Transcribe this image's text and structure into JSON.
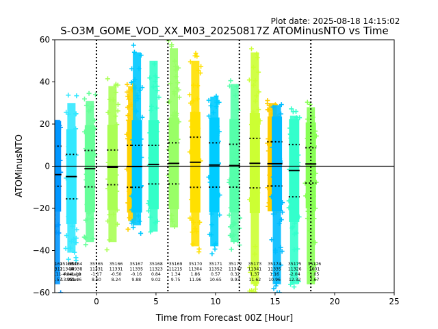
{
  "plot_date": "Plot date: 2025-08-18 14:15:02",
  "chart_data": {
    "type": "scatter",
    "title": "S-O3M_GOME_VOD_XX_M03_20250817Z ATOMinusNTO vs Time",
    "xlabel": "Time from Forecast 00Z [Hour]",
    "ylabel": "ATOMinusNTO",
    "xlim": [
      -3.5,
      25
    ],
    "ylim": [
      -60,
      60
    ],
    "xticks": [
      0,
      5,
      10,
      15,
      20,
      25
    ],
    "yticks": [
      -60,
      -40,
      -20,
      0,
      20,
      40,
      60
    ],
    "grid": false,
    "reference_line_y": 0,
    "vertical_dotted_lines_x": [
      0,
      6,
      12,
      18
    ],
    "orbits": [
      {
        "x": -3.4,
        "color": "#0096ff",
        "median": -4.0,
        "p25": -9.5,
        "p75": 9.5,
        "min": -60,
        "max": 26
      },
      {
        "x": -2.1,
        "color": "#33e8ff",
        "median": -4.9,
        "p25": -15.5,
        "p75": 5.6,
        "min": -45,
        "max": 34
      },
      {
        "x": -0.55,
        "color": "#66ff99",
        "median": -1.17,
        "p25": -9.8,
        "p75": 7.5,
        "min": -40,
        "max": 35
      },
      {
        "x": 1.35,
        "color": "#aaff55",
        "median": -0.5,
        "p25": -8.8,
        "p75": 7.7,
        "min": -40,
        "max": 42
      },
      {
        "x": 3.0,
        "color": "#ffd000",
        "median": -0.16,
        "p25": -10.0,
        "p75": 9.9,
        "min": -30,
        "max": 42
      },
      {
        "x": 3.4,
        "color": "#00c8ff",
        "median": -0.16,
        "p25": -10.0,
        "p75": 9.9,
        "min": -32,
        "max": 58
      },
      {
        "x": 4.8,
        "color": "#33ffc8",
        "median": 0.84,
        "p25": -8.4,
        "p75": 9.9,
        "min": -35,
        "max": 54
      },
      {
        "x": 6.5,
        "color": "#99ff66",
        "median": 1.34,
        "p25": -8.4,
        "p75": 11.1,
        "min": -33,
        "max": 60
      },
      {
        "x": 8.3,
        "color": "#ffe000",
        "median": 1.86,
        "p25": -10.0,
        "p75": 13.8,
        "min": -42,
        "max": 54
      },
      {
        "x": 9.9,
        "color": "#00ccff",
        "median": 0.57,
        "p25": -9.9,
        "p75": 11.1,
        "min": -42,
        "max": 37
      },
      {
        "x": 11.6,
        "color": "#55ffaa",
        "median": 0.32,
        "p25": -9.9,
        "p75": 10.4,
        "min": -40,
        "max": 43
      },
      {
        "x": 13.3,
        "color": "#ccff33",
        "median": 1.37,
        "p25": -10.3,
        "p75": 13.2,
        "min": -60,
        "max": 58
      },
      {
        "x": 14.8,
        "color": "#ffcc00",
        "median": 1.16,
        "p25": -9.4,
        "p75": 11.6,
        "min": -24,
        "max": 34
      },
      {
        "x": 15.15,
        "color": "#00bbff",
        "median": 1.16,
        "p25": -9.4,
        "p75": 11.6,
        "min": -60,
        "max": 33
      },
      {
        "x": 16.6,
        "color": "#33ffcc",
        "median": -2.04,
        "p25": -14.5,
        "p75": 10.3,
        "min": -60,
        "max": 28
      },
      {
        "x": 18.0,
        "color": "#88ff55",
        "median": 1.05,
        "p25": -8.0,
        "p75": 8.8,
        "min": -60,
        "max": 32
      }
    ],
    "annotations": [
      {
        "x": -3.4,
        "lines": [
          "35162",
          "11312",
          "-2.11",
          "15.57"
        ]
      },
      {
        "x": -2.5,
        "lines": [
          "35163",
          "11344",
          "-4.04",
          "13.97"
        ]
      },
      {
        "x": -2.0,
        "lines": [
          "Orbit",
          "N",
          "Average",
          "Stdev"
        ]
      },
      {
        "x": -1.75,
        "lines": [
          "35164",
          "10938",
          "-1.19",
          "11.46"
        ]
      },
      {
        "x": 0.0,
        "lines": [
          "35165",
          "11331",
          "-1.17",
          "8.60"
        ]
      },
      {
        "x": 1.65,
        "lines": [
          "35166",
          "11331",
          "-0.50",
          "8.24"
        ]
      },
      {
        "x": 3.35,
        "lines": [
          "35167",
          "11335",
          "-0.16",
          "9.88"
        ]
      },
      {
        "x": 5.0,
        "lines": [
          "35168",
          "11323",
          "0.84",
          "9.02"
        ]
      },
      {
        "x": 6.65,
        "lines": [
          "35169",
          "11215",
          "1.34",
          "9.75"
        ]
      },
      {
        "x": 8.3,
        "lines": [
          "35170",
          "11304",
          "1.86",
          "11.96"
        ]
      },
      {
        "x": 10.0,
        "lines": [
          "35171",
          "11352",
          "0.57",
          "10.65"
        ]
      },
      {
        "x": 11.65,
        "lines": [
          "35172",
          "11347",
          "0.32",
          "9.93"
        ]
      },
      {
        "x": 13.3,
        "lines": [
          "35173",
          "11341",
          "1.37",
          "11.62"
        ]
      },
      {
        "x": 14.95,
        "lines": [
          "35174",
          "11335",
          "1.16",
          "10.96"
        ]
      },
      {
        "x": 16.65,
        "lines": [
          "35175",
          "11326",
          "-2.04",
          "12.32"
        ]
      },
      {
        "x": 18.3,
        "lines": [
          "35176",
          "1601",
          "1.05",
          "7.67"
        ]
      }
    ]
  }
}
